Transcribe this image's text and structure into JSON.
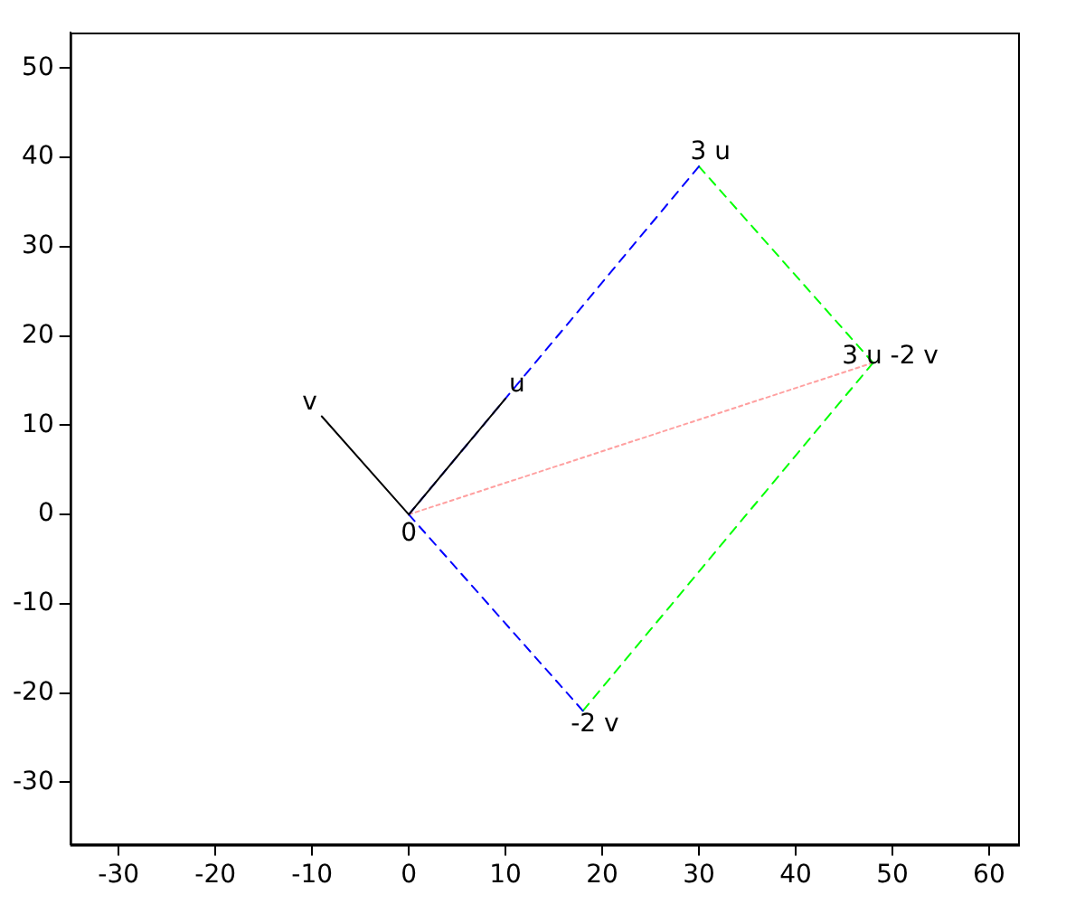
{
  "chart_data": {
    "type": "line",
    "xlim": [
      -35,
      63
    ],
    "ylim": [
      -37,
      54
    ],
    "xticks": [
      -30,
      -20,
      -10,
      0,
      10,
      20,
      30,
      40,
      50,
      60
    ],
    "yticks": [
      -30,
      -20,
      -10,
      0,
      10,
      20,
      30,
      40,
      50
    ],
    "grid": false,
    "legend": false,
    "marker": "none",
    "series": [
      {
        "color": "#000000",
        "line_style": "solid",
        "x": [
          0,
          10
        ],
        "values": [
          0,
          13
        ]
      },
      {
        "color": "#000000",
        "line_style": "solid",
        "x": [
          0,
          -9
        ],
        "values": [
          0,
          11
        ]
      },
      {
        "color": "#0000ff",
        "line_style": "dashed",
        "x": [
          0,
          30
        ],
        "values": [
          0,
          39
        ]
      },
      {
        "color": "#0000ff",
        "line_style": "dashed",
        "x": [
          0,
          18
        ],
        "values": [
          0,
          -22
        ]
      },
      {
        "color": "#00ff00",
        "line_style": "dashed",
        "x": [
          30,
          48
        ],
        "values": [
          39,
          17
        ]
      },
      {
        "color": "#00ff00",
        "line_style": "dashed",
        "x": [
          18,
          48
        ],
        "values": [
          -22,
          17
        ]
      },
      {
        "color": "#ffa0a0",
        "line_style": "dotted",
        "x": [
          0,
          48
        ],
        "values": [
          0,
          17
        ]
      }
    ],
    "annotations": [
      {
        "text": "u",
        "x": 10,
        "y": 13
      },
      {
        "text": "v",
        "x": -9,
        "y": 11
      },
      {
        "text": "3 u",
        "x": 30,
        "y": 39
      },
      {
        "text": "3 u -2 v",
        "x": 48,
        "y": 17
      },
      {
        "text": "-2 v",
        "x": 18,
        "y": -22
      },
      {
        "text": "0",
        "x": 0,
        "y": 0
      }
    ]
  }
}
